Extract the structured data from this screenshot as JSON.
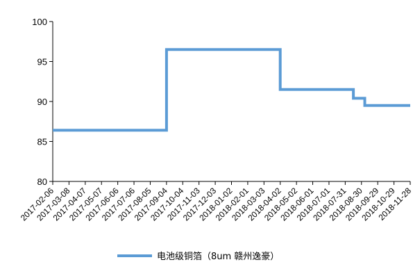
{
  "chart_data": {
    "type": "line",
    "title": "",
    "xlabel": "",
    "ylabel": "",
    "ylim": [
      80,
      100
    ],
    "yticks": [
      80,
      85,
      90,
      95,
      100
    ],
    "x_ticks": [
      "2017-02-06",
      "2017-03-08",
      "2017-04-07",
      "2017-05-07",
      "2017-06-06",
      "2017-07-06",
      "2017-08-05",
      "2017-09-04",
      "2017-10-04",
      "2017-11-03",
      "2017-12-03",
      "2018-01-02",
      "2018-02-01",
      "2018-03-03",
      "2018-04-02",
      "2018-05-02",
      "2018-06-01",
      "2018-07-01",
      "2018-07-31",
      "2018-08-30",
      "2018-09-29",
      "2018-10-29",
      "2018-11-28"
    ],
    "x_range": [
      "2017-02-06",
      "2018-11-28"
    ],
    "grid": false,
    "legend_position": "bottom",
    "series": [
      {
        "name": "电池级铜箔（8um 赣州逸豪）",
        "color": "#5b9bd5",
        "x": [
          "2017-02-06",
          "2017-09-04",
          "2017-09-04",
          "2018-04-02",
          "2018-04-02",
          "2018-08-15",
          "2018-08-15",
          "2018-09-05",
          "2018-09-05",
          "2018-11-28"
        ],
        "y": [
          86.4,
          86.4,
          96.5,
          96.5,
          91.5,
          91.5,
          90.4,
          90.4,
          89.5,
          89.5
        ]
      }
    ]
  }
}
